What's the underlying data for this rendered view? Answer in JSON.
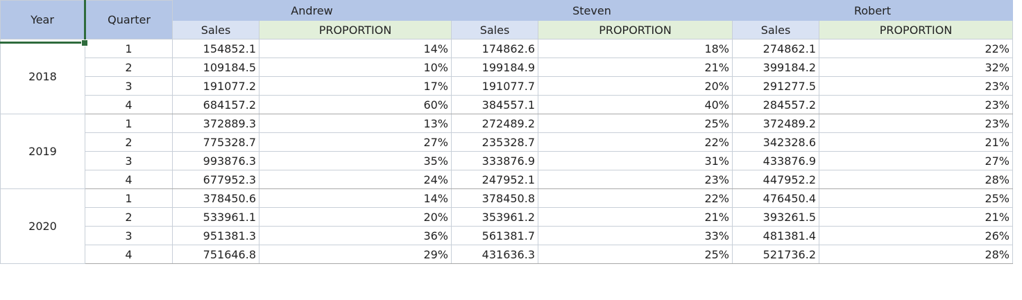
{
  "headers": {
    "year": "Year",
    "quarter": "Quarter",
    "people": [
      "Andrew",
      "Steven",
      "Robert"
    ],
    "sales": "Sales",
    "proportion": "PROPORTION"
  },
  "rows": [
    {
      "year": "2018",
      "q": "1",
      "a_sales": "154852.1",
      "a_prop": "14%",
      "s_sales": "174862.6",
      "s_prop": "18%",
      "r_sales": "274862.1",
      "r_prop": "22%"
    },
    {
      "year": "2018",
      "q": "2",
      "a_sales": "109184.5",
      "a_prop": "10%",
      "s_sales": "199184.9",
      "s_prop": "21%",
      "r_sales": "399184.2",
      "r_prop": "32%"
    },
    {
      "year": "2018",
      "q": "3",
      "a_sales": "191077.2",
      "a_prop": "17%",
      "s_sales": "191077.7",
      "s_prop": "20%",
      "r_sales": "291277.5",
      "r_prop": "23%"
    },
    {
      "year": "2018",
      "q": "4",
      "a_sales": "684157.2",
      "a_prop": "60%",
      "s_sales": "384557.1",
      "s_prop": "40%",
      "r_sales": "284557.2",
      "r_prop": "23%"
    },
    {
      "year": "2019",
      "q": "1",
      "a_sales": "372889.3",
      "a_prop": "13%",
      "s_sales": "272489.2",
      "s_prop": "25%",
      "r_sales": "372489.2",
      "r_prop": "23%"
    },
    {
      "year": "2019",
      "q": "2",
      "a_sales": "775328.7",
      "a_prop": "27%",
      "s_sales": "235328.7",
      "s_prop": "22%",
      "r_sales": "342328.6",
      "r_prop": "21%"
    },
    {
      "year": "2019",
      "q": "3",
      "a_sales": "993876.3",
      "a_prop": "35%",
      "s_sales": "333876.9",
      "s_prop": "31%",
      "r_sales": "433876.9",
      "r_prop": "27%"
    },
    {
      "year": "2019",
      "q": "4",
      "a_sales": "677952.3",
      "a_prop": "24%",
      "s_sales": "247952.1",
      "s_prop": "23%",
      "r_sales": "447952.2",
      "r_prop": "28%"
    },
    {
      "year": "2020",
      "q": "1",
      "a_sales": "378450.6",
      "a_prop": "14%",
      "s_sales": "378450.8",
      "s_prop": "22%",
      "r_sales": "476450.4",
      "r_prop": "25%"
    },
    {
      "year": "2020",
      "q": "2",
      "a_sales": "533961.1",
      "a_prop": "20%",
      "s_sales": "353961.2",
      "s_prop": "21%",
      "r_sales": "393261.5",
      "r_prop": "21%"
    },
    {
      "year": "2020",
      "q": "3",
      "a_sales": "951381.3",
      "a_prop": "36%",
      "s_sales": "561381.7",
      "s_prop": "33%",
      "r_sales": "481381.4",
      "r_prop": "26%"
    },
    {
      "year": "2020",
      "q": "4",
      "a_sales": "751646.8",
      "a_prop": "29%",
      "s_sales": "431636.3",
      "s_prop": "25%",
      "r_sales": "521736.2",
      "r_prop": "28%"
    }
  ]
}
